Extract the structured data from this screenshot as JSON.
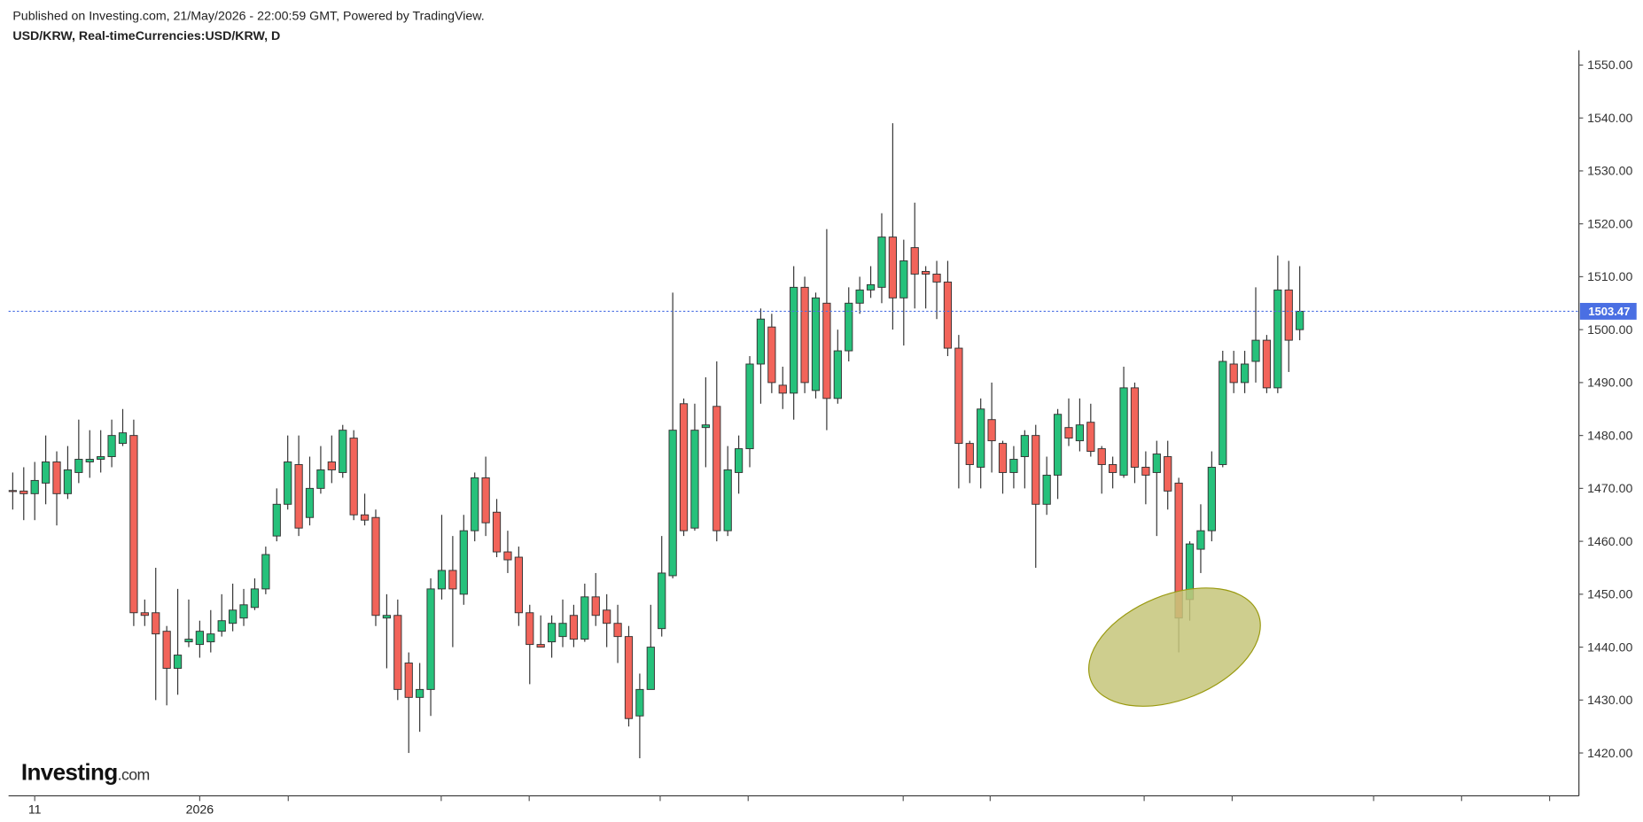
{
  "chart_data": {
    "type": "candlestick",
    "subtitle": "Published on Investing.com, 21/May/2026 - 22:00:59 GMT, Powered by TradingView.",
    "title": "USD/KRW, Real-timeCurrencies:USD/KRW, D",
    "up_color": "#26c17b",
    "down_color": "#f2645a",
    "last_line_color": "#4a6fe3",
    "ylim": [
      1411.9,
      1552.8
    ],
    "yticks": [
      {
        "value": 1420,
        "label": "1420.00"
      },
      {
        "value": 1430,
        "label": "1430.00"
      },
      {
        "value": 1440,
        "label": "1440.00"
      },
      {
        "value": 1450,
        "label": "1450.00"
      },
      {
        "value": 1460,
        "label": "1460.00"
      },
      {
        "value": 1470,
        "label": "1470.00"
      },
      {
        "value": 1480,
        "label": "1480.00"
      },
      {
        "value": 1490,
        "label": "1490.00"
      },
      {
        "value": 1500,
        "label": "1500.00"
      },
      {
        "value": 1510,
        "label": "1510.00"
      },
      {
        "value": 1520,
        "label": "1520.00"
      },
      {
        "value": 1530,
        "label": "1530.00"
      },
      {
        "value": 1540,
        "label": "1540.00"
      },
      {
        "value": 1550,
        "label": "1550.00"
      }
    ],
    "categories": [
      null,
      null,
      "11",
      null,
      null,
      null,
      null,
      null,
      null,
      null,
      null,
      null,
      null,
      null,
      null,
      null,
      null,
      "2026",
      null,
      null,
      null,
      null,
      null,
      null,
      null,
      null,
      null,
      null,
      null,
      null,
      null,
      null,
      null,
      null,
      null,
      null,
      null,
      null,
      null,
      null,
      null,
      null,
      null,
      null,
      null,
      null,
      null,
      null,
      null,
      null,
      null,
      null,
      null,
      null,
      null,
      null,
      null,
      null,
      null,
      null,
      null,
      null,
      null,
      null,
      null,
      null,
      null,
      null,
      null,
      null,
      null,
      null,
      null,
      null,
      null,
      null,
      null,
      null,
      null,
      null,
      null,
      null,
      null,
      null,
      null,
      null,
      null,
      null,
      null,
      null,
      null,
      null,
      null,
      null,
      null,
      null,
      null,
      null,
      null,
      null,
      null,
      null,
      null,
      null,
      null,
      null,
      null,
      null,
      null,
      null,
      null,
      null,
      null,
      null,
      null,
      null,
      null,
      null
    ],
    "open": [
      1469.6,
      1469.5,
      1469,
      1471,
      1475,
      1469,
      1473,
      1475,
      1475.5,
      1476,
      1478.5,
      1480,
      1446.5,
      1446.5,
      1443,
      1436,
      1441,
      1440.5,
      1441,
      1443,
      1444.5,
      1445.5,
      1447.5,
      1451,
      1461,
      1467,
      1474.5,
      1464.5,
      1470,
      1475,
      1473,
      1479.5,
      1465,
      1464.5,
      1445.5,
      1446,
      1437,
      1430.5,
      1432,
      1451,
      1454.5,
      1450,
      1462,
      1472,
      1465.5,
      1458,
      1457,
      1446.5,
      1440.5,
      1441,
      1442,
      1446,
      1441.5,
      1449.5,
      1447,
      1444.5,
      1442,
      1427,
      1432,
      1443.5,
      1453.5,
      1486,
      1462.5,
      1481.5,
      1485.5,
      1462,
      1473,
      1477.5,
      1493.5,
      1500.5,
      1489.5,
      1488,
      1508,
      1488.5,
      1505,
      1487,
      1496,
      1505,
      1507.5,
      1508,
      1517.5,
      1506,
      1515.5,
      1511,
      1510.5,
      1509,
      1496.5,
      1478.5,
      1474,
      1483,
      1478.5,
      1473,
      1476,
      1480,
      1467,
      1472.5,
      1481.5,
      1479,
      1482.5,
      1477.5,
      1474.5,
      1472.5,
      1489,
      1474,
      1473,
      1476,
      1471,
      1449,
      1458.5,
      1462,
      1474.5,
      1493.5,
      1490,
      1494,
      1498,
      1489,
      1507.5,
      1500
    ],
    "high": [
      1473,
      1474,
      1475,
      1480,
      1477,
      1478,
      1483,
      1481,
      1481,
      1483,
      1485,
      1483,
      1449,
      1455,
      1444,
      1451,
      1449,
      1445,
      1447,
      1450,
      1452,
      1451,
      1453,
      1459,
      1470,
      1480,
      1480,
      1476,
      1478,
      1480,
      1482,
      1481,
      1469,
      1466,
      1450,
      1449,
      1439,
      1437,
      1453,
      1465,
      1461,
      1465,
      1473,
      1476,
      1468,
      1462,
      1459,
      1448,
      1446,
      1446,
      1449,
      1448,
      1452,
      1454,
      1450,
      1448,
      1444,
      1435,
      1448,
      1461,
      1507,
      1487,
      1486,
      1491,
      1494,
      1478,
      1480,
      1495,
      1504,
      1503,
      1493,
      1512,
      1510,
      1507,
      1519,
      1500,
      1508,
      1510,
      1512,
      1522,
      1539,
      1517,
      1524,
      1512,
      1513,
      1513,
      1499,
      1479,
      1487,
      1490,
      1479,
      1478,
      1481,
      1482,
      1476,
      1485,
      1487,
      1487,
      1486,
      1478,
      1476,
      1493,
      1490,
      1477,
      1479,
      1479,
      1472,
      1460,
      1467,
      1477,
      1496,
      1496,
      1496,
      1508,
      1499,
      1514,
      1513,
      1512
    ],
    "low": [
      1466,
      1464,
      1464,
      1467,
      1463,
      1468,
      1471,
      1472,
      1473,
      1474,
      1478,
      1444,
      1444,
      1430,
      1429,
      1431,
      1440,
      1438,
      1439,
      1442,
      1443,
      1444,
      1447,
      1450,
      1460,
      1466,
      1461,
      1463,
      1469,
      1471,
      1472,
      1464,
      1463,
      1444,
      1436,
      1430,
      1420,
      1424,
      1427,
      1449,
      1440,
      1448,
      1460,
      1461,
      1457,
      1454,
      1444,
      1433,
      1440,
      1438,
      1440,
      1440,
      1441,
      1444,
      1440,
      1437,
      1425,
      1419,
      1432,
      1442,
      1453,
      1461,
      1462,
      1474,
      1460,
      1461,
      1469,
      1474,
      1486,
      1488,
      1485,
      1483,
      1488,
      1487,
      1481,
      1486,
      1494,
      1503,
      1506,
      1505,
      1500,
      1497,
      1504,
      1504,
      1502,
      1495,
      1470,
      1471,
      1470,
      1473,
      1469,
      1470,
      1470,
      1455,
      1465,
      1468,
      1478,
      1477,
      1476,
      1469,
      1470,
      1472,
      1471,
      1467,
      1461,
      1466,
      1439,
      1445,
      1454,
      1460,
      1474,
      1488,
      1488,
      1490,
      1488,
      1488,
      1492,
      1498
    ],
    "close": [
      1469.4,
      1469,
      1471.5,
      1475,
      1469,
      1473.5,
      1475.5,
      1475.5,
      1476,
      1480,
      1480.5,
      1446.5,
      1446,
      1442.5,
      1436,
      1438.5,
      1441.5,
      1443,
      1442.5,
      1445,
      1447,
      1448,
      1451,
      1457.5,
      1467,
      1475,
      1462.5,
      1470,
      1473.5,
      1473.5,
      1481,
      1465,
      1464,
      1446,
      1446,
      1432,
      1430.5,
      1432,
      1451,
      1454.5,
      1451,
      1462,
      1472,
      1463.5,
      1458,
      1456.5,
      1446.5,
      1440.5,
      1440,
      1444.5,
      1444.5,
      1441.5,
      1449.5,
      1446,
      1444.5,
      1442,
      1426.5,
      1432,
      1440,
      1454,
      1481,
      1462,
      1481,
      1482,
      1462,
      1473.5,
      1477.5,
      1493.5,
      1502,
      1490,
      1488,
      1508,
      1490,
      1506,
      1487,
      1496,
      1505,
      1507.5,
      1508.5,
      1517.5,
      1506,
      1513,
      1510.5,
      1510.5,
      1509,
      1496.5,
      1478.5,
      1474.5,
      1485,
      1479,
      1473,
      1475.5,
      1480,
      1467,
      1472.5,
      1484,
      1479.5,
      1482,
      1477,
      1474.5,
      1473,
      1489,
      1474,
      1472.5,
      1476.5,
      1469.5,
      1445.5,
      1459.5,
      1462,
      1474,
      1494,
      1490,
      1493.5,
      1498,
      1489,
      1507.5,
      1498,
      1503.47
    ]
  },
  "logo": {
    "main": "Investing",
    "suffix": ".com"
  }
}
